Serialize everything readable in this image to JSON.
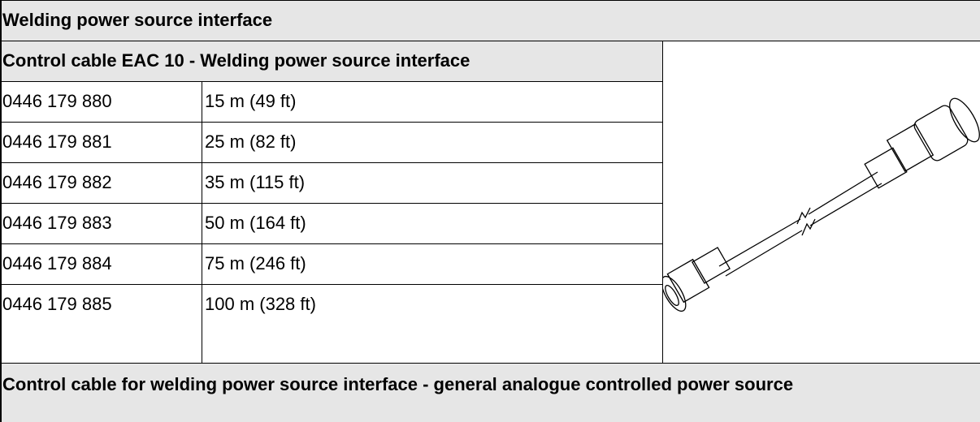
{
  "header": {
    "title": "Welding power source interface"
  },
  "table": {
    "title": "Control cable EAC 10 - Welding power source interface",
    "rows": [
      [
        "0446 179 880",
        "15 m (49 ft)"
      ],
      [
        "0446 179 881",
        "25 m (82 ft)"
      ],
      [
        "0446 179 882",
        "35 m (115 ft)"
      ],
      [
        "0446 179 883",
        "50 m (164 ft)"
      ],
      [
        "0446 179 884",
        "75 m (246 ft)"
      ],
      [
        "0446 179 885",
        "100 m (328 ft)"
      ]
    ]
  },
  "footer": {
    "title": "Control cable for welding power source interface - general analogue controlled power source"
  }
}
